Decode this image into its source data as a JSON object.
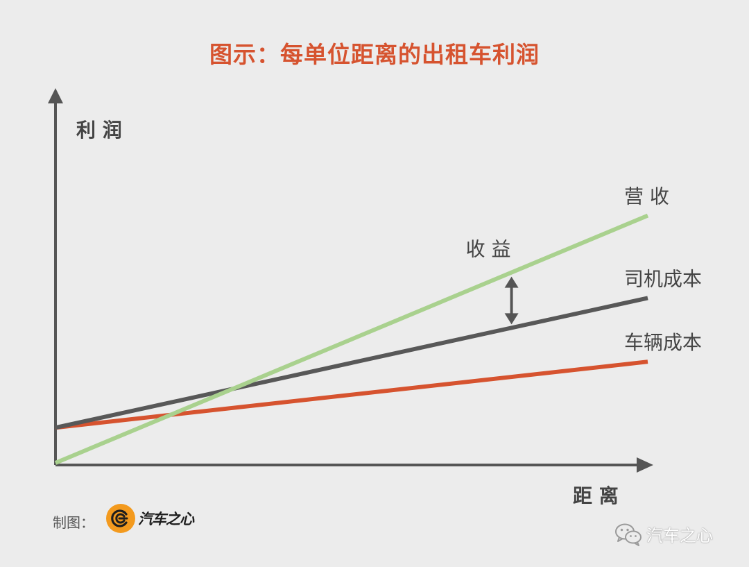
{
  "chart_data": {
    "type": "line",
    "title": "图示：每单位距离的出租车利润",
    "xlabel": "距 离",
    "ylabel": "利 润",
    "xlim": [
      0,
      100
    ],
    "ylim": [
      0,
      100
    ],
    "grid": false,
    "series": [
      {
        "name": "营 收",
        "color": "#a9d18e",
        "x": [
          0,
          100
        ],
        "y": [
          0,
          66
        ]
      },
      {
        "name": "司机成本",
        "color": "#585858",
        "x": [
          0,
          100
        ],
        "y": [
          9.4,
          44
        ]
      },
      {
        "name": "车辆成本",
        "color": "#d6532f",
        "x": [
          0,
          100
        ],
        "y": [
          9.4,
          27
        ]
      }
    ],
    "annotations": [
      {
        "text": "收 益",
        "x": 77,
        "between": [
          "营 收",
          "司机成本"
        ]
      }
    ]
  },
  "footer": {
    "credit_label": "制图：",
    "logo_text": "汽车之心",
    "watermark_text": "汽车之心"
  },
  "colors": {
    "title": "#d6532f",
    "axis": "#555555",
    "logo_badge": "#f39a1e"
  }
}
